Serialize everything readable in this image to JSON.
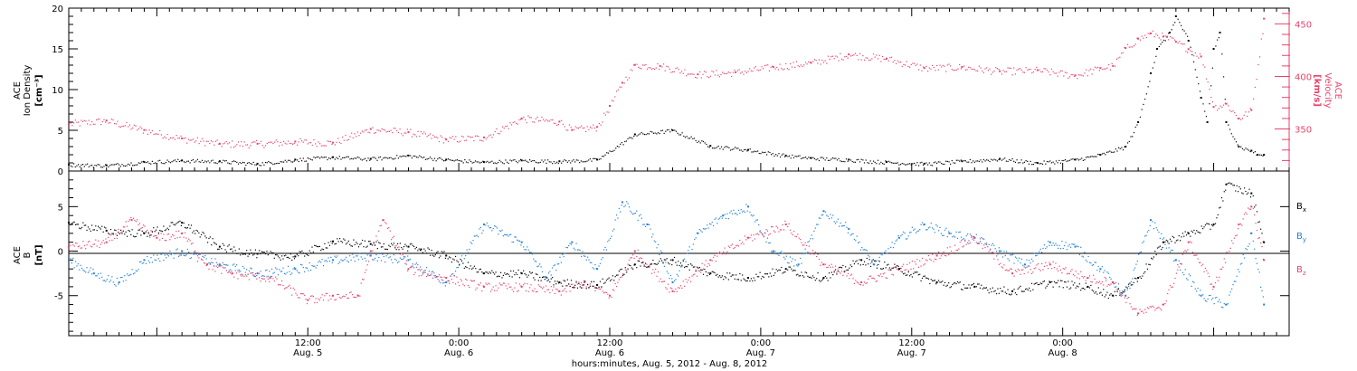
{
  "chart_data": [
    {
      "type": "scatter",
      "panel": "top",
      "ylabel_left": [
        "ACE",
        "Ion Density",
        "[cm⁻³]"
      ],
      "ylabel_right": [
        "ACE",
        "Velocity",
        "[km/s]"
      ],
      "ylim_left": [
        0,
        20
      ],
      "yticks_left": [
        "0",
        "5",
        "10",
        "15",
        "20"
      ],
      "ylim_right": [
        310,
        465
      ],
      "yticks_right": [
        "350",
        "400",
        "450"
      ],
      "x_range_hours": [
        -19,
        78
      ],
      "series": [
        {
          "name": "",
          "axis": "left",
          "color": "#000000",
          "x": [
            -19,
            -16,
            -13,
            -10,
            -7,
            -4,
            -1,
            2,
            5,
            8,
            11,
            14,
            17,
            20,
            23,
            26,
            29,
            32,
            35,
            38,
            40,
            43,
            46,
            49,
            52,
            55,
            58,
            61,
            63,
            65,
            66,
            67,
            67.5,
            68.5,
            69,
            70,
            71,
            71.5,
            72,
            72.5,
            73,
            74,
            75,
            75.5,
            76
          ],
          "values": [
            0.8,
            0.7,
            1.1,
            1.3,
            1.2,
            0.9,
            1.4,
            1.7,
            1.5,
            1.9,
            1.4,
            1.1,
            1.3,
            1.2,
            1.4,
            4.5,
            5.0,
            3.1,
            2.6,
            1.9,
            1.6,
            1.4,
            1.1,
            0.9,
            1.2,
            1.5,
            1.0,
            1.4,
            2.0,
            3.0,
            6.0,
            12.0,
            15.0,
            17.0,
            19.0,
            16.0,
            9.0,
            6.0,
            15.0,
            17.0,
            6.0,
            3.0,
            2.5,
            2.0,
            2.0
          ]
        },
        {
          "name": "",
          "axis": "right",
          "color": "#e8436b",
          "x": [
            -19,
            -16,
            -13,
            -10,
            -7,
            -4,
            -1,
            2,
            5,
            8,
            11,
            14,
            17,
            20,
            21,
            23,
            24,
            25,
            26,
            28,
            31,
            34,
            37,
            40,
            43,
            46,
            49,
            52,
            55,
            58,
            61,
            63,
            64,
            65,
            66,
            67,
            68,
            69,
            70,
            71,
            72,
            73,
            74,
            75,
            76
          ],
          "values": [
            355,
            358,
            349,
            341,
            336,
            336,
            338,
            337,
            350,
            347,
            340,
            342,
            360,
            357,
            349,
            352,
            372,
            394,
            411,
            410,
            402,
            404,
            409,
            413,
            421,
            417,
            408,
            409,
            405,
            406,
            401,
            408,
            410,
            427,
            436,
            441,
            438,
            433,
            426,
            419,
            371,
            374,
            360,
            368,
            455
          ]
        }
      ]
    },
    {
      "type": "scatter",
      "panel": "bottom",
      "ylabel_left": [
        "ACE",
        "B",
        "[nT]"
      ],
      "ylim": [
        -9.5,
        9
      ],
      "yticks": [
        "-5",
        "0",
        "5"
      ],
      "x_range_hours": [
        -19,
        78
      ],
      "legend": [
        "Bx",
        "By",
        "Bz"
      ],
      "series": [
        {
          "name": "Bx",
          "color": "#000000",
          "x": [
            -19,
            -16,
            -13,
            -10,
            -7,
            -4,
            -1,
            2,
            5,
            8,
            9,
            11,
            14,
            17,
            20,
            23,
            26,
            29,
            32,
            35,
            38,
            41,
            44,
            47,
            50,
            53,
            56,
            59,
            62,
            64,
            66,
            68,
            70,
            72,
            73,
            75,
            76
          ],
          "values": [
            3.2,
            2.3,
            2.0,
            3.2,
            0.5,
            -0.3,
            -0.6,
            1.1,
            0.8,
            0.5,
            0.2,
            -0.5,
            -2.5,
            -2.5,
            -3.5,
            -3.8,
            -1.5,
            -1.0,
            -2.5,
            -3.0,
            -2.0,
            -3.0,
            -1.0,
            -2.0,
            -3.5,
            -4.0,
            -4.5,
            -3.5,
            -4.0,
            -5.0,
            -3.0,
            1.0,
            2.0,
            3.0,
            7.5,
            6.5,
            1.0
          ]
        },
        {
          "name": "By",
          "color": "#1f7fd8",
          "x": [
            -19,
            -17,
            -15,
            -13,
            -10,
            -7,
            -4,
            -1,
            2,
            5,
            8,
            11,
            14,
            17,
            19,
            21,
            23,
            25,
            27,
            29,
            31,
            33,
            35,
            37,
            39,
            41,
            43,
            45,
            47,
            49,
            51,
            53,
            55,
            57,
            59,
            61,
            63,
            65,
            67,
            69,
            71,
            73,
            75,
            76
          ],
          "values": [
            -1.0,
            -2.5,
            -3.5,
            -1.0,
            0.0,
            -1.5,
            -2.5,
            -2.0,
            -1.0,
            -0.5,
            -1.0,
            -3.5,
            3.0,
            1.0,
            -3.0,
            1.0,
            -2.0,
            5.5,
            3.0,
            -3.5,
            2.0,
            4.0,
            5.0,
            0.0,
            -1.5,
            4.5,
            2.5,
            -1.5,
            1.5,
            3.0,
            2.0,
            1.5,
            0.0,
            -1.5,
            1.0,
            0.5,
            -2.0,
            -5.0,
            3.5,
            -1.0,
            -5.0,
            -6.0,
            2.0,
            -6.0
          ]
        },
        {
          "name": "Bz",
          "color": "#e8436b",
          "x": [
            -19,
            -16,
            -14,
            -12,
            -10,
            -8,
            -6,
            -3,
            0,
            2,
            4,
            5,
            6,
            8,
            11,
            14,
            17,
            20,
            22,
            24,
            26,
            29,
            32,
            35,
            38,
            41,
            44,
            47,
            50,
            53,
            56,
            59,
            62,
            64,
            66,
            68,
            70,
            72,
            74,
            75,
            76
          ],
          "values": [
            0.5,
            1.0,
            3.5,
            1.5,
            2.0,
            -1.5,
            -2.5,
            -3.0,
            -5.5,
            -5.0,
            -5.0,
            0.0,
            3.5,
            -2.0,
            -3.0,
            -4.0,
            -4.0,
            -4.5,
            -3.5,
            -5.0,
            0.0,
            -4.5,
            -1.0,
            1.5,
            3.0,
            -1.5,
            -3.5,
            -2.0,
            -0.5,
            1.5,
            -2.5,
            -1.5,
            -3.0,
            -3.5,
            -7.0,
            -6.0,
            1.0,
            -4.0,
            3.0,
            5.0,
            -1.0
          ]
        }
      ]
    }
  ],
  "x_axis": {
    "ticks": [
      {
        "time": "12:00",
        "date": "Aug. 5"
      },
      {
        "time": "0:00",
        "date": "Aug. 6"
      },
      {
        "time": "12:00",
        "date": "Aug. 6"
      },
      {
        "time": "0:00",
        "date": "Aug. 7"
      },
      {
        "time": "12:00",
        "date": "Aug. 7"
      },
      {
        "time": "0:00",
        "date": "Aug. 8"
      }
    ],
    "title": "hours:minutes, Aug.  5, 2012 - Aug.  8, 2012"
  }
}
